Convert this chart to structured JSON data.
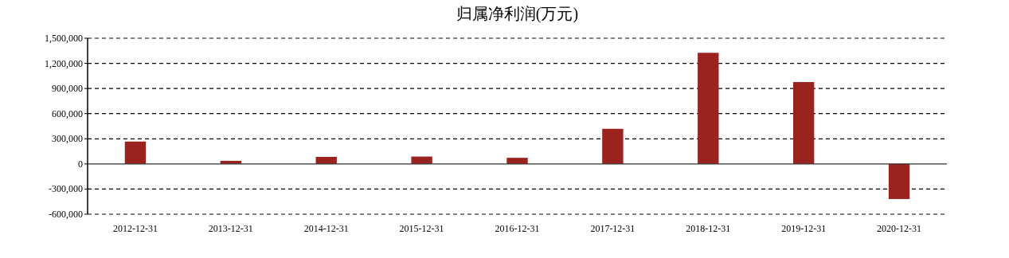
{
  "chart_data": {
    "type": "bar",
    "title": "归属净利润(万元)",
    "categories": [
      "2012-12-31",
      "2013-12-31",
      "2014-12-31",
      "2015-12-31",
      "2016-12-31",
      "2017-12-31",
      "2018-12-31",
      "2019-12-31",
      "2020-12-31"
    ],
    "values": [
      267000,
      37000,
      84000,
      88000,
      73000,
      419000,
      1326000,
      977000,
      -419000
    ],
    "color": "#9a231f",
    "ylim": [
      -600000,
      1500000
    ],
    "yticks": [
      {
        "value": -600000,
        "label": "-600,000"
      },
      {
        "value": -300000,
        "label": "-300,000"
      },
      0,
      {
        "value": 300000,
        "label": "300,000"
      },
      {
        "value": 600000,
        "label": "600,000"
      },
      {
        "value": 900000,
        "label": "900,000"
      },
      {
        "value": 1200000,
        "label": "1,200,000"
      },
      {
        "value": 1500000,
        "label": "1,500,000"
      }
    ],
    "grid": "y"
  }
}
